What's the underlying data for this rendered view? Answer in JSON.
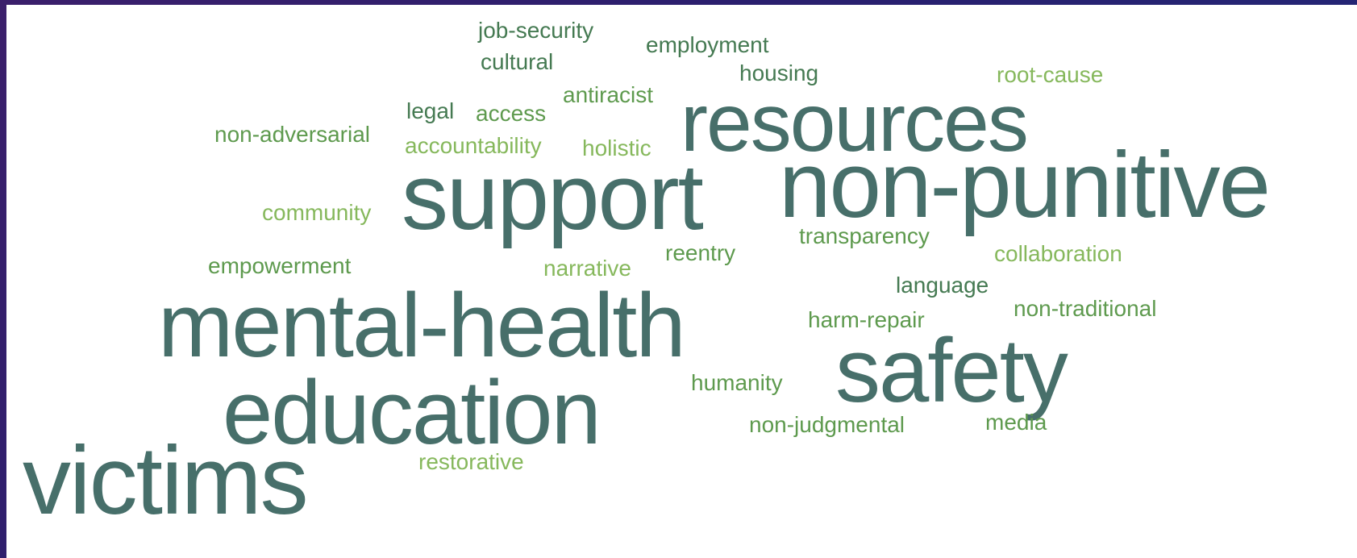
{
  "colors": {
    "background_gradient_start": "#3b1f6b",
    "background_gradient_end": "#1f2a7a",
    "cloud_background": "#ffffff",
    "teal": "#476f6a",
    "dark_green": "#457a52",
    "medium_green": "#5e9a4e",
    "light_green": "#86b85c"
  },
  "word_cloud": {
    "words": [
      {
        "text": "victims",
        "weight": 1.0,
        "color": "teal"
      },
      {
        "text": "non-punitive",
        "weight": 0.97,
        "color": "teal"
      },
      {
        "text": "support",
        "weight": 0.97,
        "color": "teal"
      },
      {
        "text": "mental-health",
        "weight": 0.93,
        "color": "teal"
      },
      {
        "text": "safety",
        "weight": 0.93,
        "color": "teal"
      },
      {
        "text": "education",
        "weight": 0.93,
        "color": "teal"
      },
      {
        "text": "resources",
        "weight": 0.85,
        "color": "teal"
      },
      {
        "text": "job-security",
        "weight": 0.23,
        "color": "dark_green"
      },
      {
        "text": "employment",
        "weight": 0.23,
        "color": "dark_green"
      },
      {
        "text": "cultural",
        "weight": 0.23,
        "color": "dark_green"
      },
      {
        "text": "housing",
        "weight": 0.23,
        "color": "dark_green"
      },
      {
        "text": "root-cause",
        "weight": 0.23,
        "color": "light_green"
      },
      {
        "text": "antiracist",
        "weight": 0.23,
        "color": "medium_green"
      },
      {
        "text": "legal",
        "weight": 0.23,
        "color": "dark_green"
      },
      {
        "text": "access",
        "weight": 0.23,
        "color": "medium_green"
      },
      {
        "text": "non-adversarial",
        "weight": 0.23,
        "color": "medium_green"
      },
      {
        "text": "accountability",
        "weight": 0.23,
        "color": "light_green"
      },
      {
        "text": "holistic",
        "weight": 0.23,
        "color": "light_green"
      },
      {
        "text": "community",
        "weight": 0.23,
        "color": "light_green"
      },
      {
        "text": "transparency",
        "weight": 0.23,
        "color": "medium_green"
      },
      {
        "text": "reentry",
        "weight": 0.23,
        "color": "medium_green"
      },
      {
        "text": "collaboration",
        "weight": 0.23,
        "color": "light_green"
      },
      {
        "text": "empowerment",
        "weight": 0.23,
        "color": "medium_green"
      },
      {
        "text": "narrative",
        "weight": 0.23,
        "color": "light_green"
      },
      {
        "text": "language",
        "weight": 0.23,
        "color": "dark_green"
      },
      {
        "text": "non-traditional",
        "weight": 0.23,
        "color": "medium_green"
      },
      {
        "text": "harm-repair",
        "weight": 0.23,
        "color": "medium_green"
      },
      {
        "text": "humanity",
        "weight": 0.23,
        "color": "medium_green"
      },
      {
        "text": "media",
        "weight": 0.23,
        "color": "medium_green"
      },
      {
        "text": "non-judgmental",
        "weight": 0.23,
        "color": "medium_green"
      },
      {
        "text": "restorative",
        "weight": 0.23,
        "color": "light_green"
      }
    ]
  }
}
